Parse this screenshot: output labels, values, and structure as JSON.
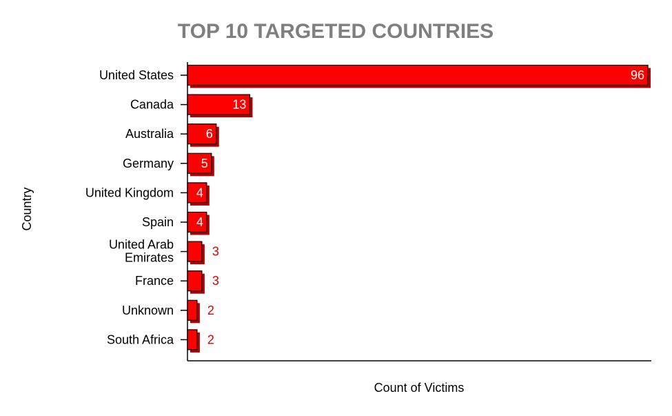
{
  "chart_data": {
    "type": "bar",
    "orientation": "horizontal",
    "title": "TOP 10 TARGETED COUNTRIES",
    "xlabel": "Count of Victims",
    "ylabel": "Country",
    "categories": [
      "United States",
      "Canada",
      "Australia",
      "Germany",
      "United Kingdom",
      "Spain",
      "United Arab Emirates",
      "France",
      "Unknown",
      "South Africa"
    ],
    "values": [
      96,
      13,
      6,
      5,
      4,
      4,
      3,
      3,
      2,
      2
    ],
    "xlim": [
      0,
      96
    ],
    "grid": false,
    "legend": "none",
    "colors": {
      "bar": "#ff0000",
      "bar_shadow": "#b30000",
      "bar_edge": "#000000",
      "title": "#7f7f7f",
      "label_inside": "#ffffff",
      "label_outside": "#e00000"
    }
  }
}
